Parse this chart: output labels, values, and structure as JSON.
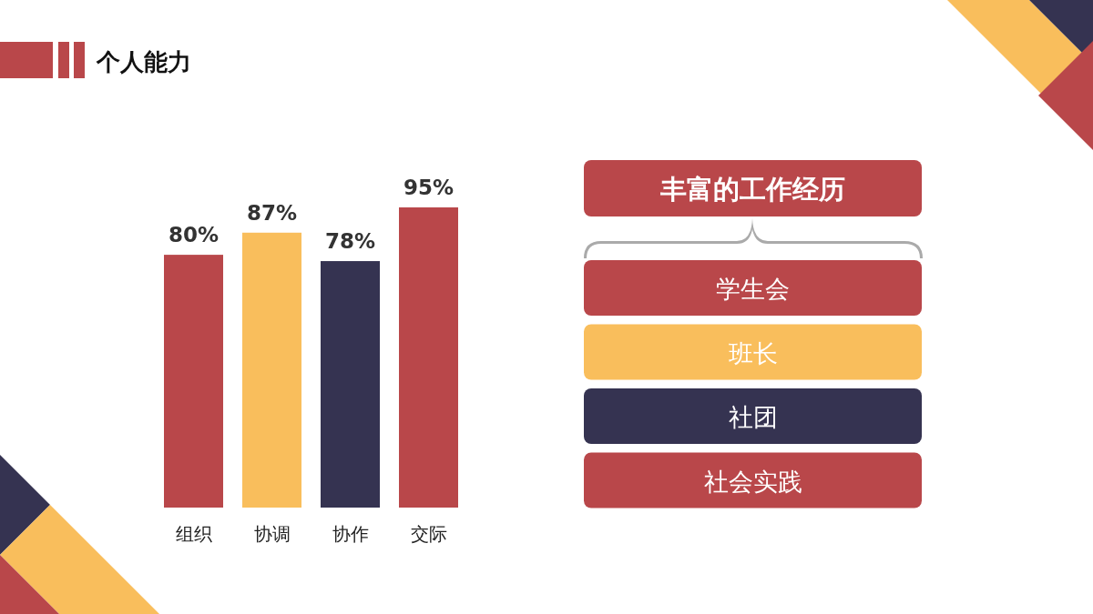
{
  "chart_data": [
    {
      "type": "bar",
      "title": "个人能力",
      "categories": [
        "组织",
        "协调",
        "协作",
        "交际"
      ],
      "values": [
        80,
        87,
        78,
        95
      ],
      "colors": [
        "#b9474a",
        "#f9be5c",
        "#353351",
        "#b9474a"
      ],
      "value_labels": [
        "80%",
        "87%",
        "78%",
        "95%"
      ]
    },
    {
      "type": "other",
      "title": "丰富的工作经历",
      "annotations": [
        "学生会",
        "班长",
        "社团",
        "社会实践"
      ],
      "colors": [
        "#b9474a",
        "#f9be5c",
        "#353351",
        "#b9474a"
      ]
    }
  ]
}
